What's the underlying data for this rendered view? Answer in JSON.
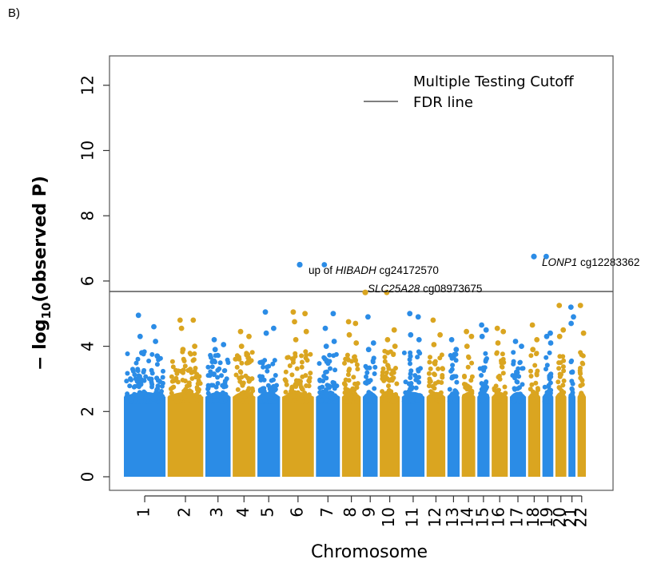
{
  "panel_label": "B)",
  "chart_data": {
    "type": "scatter",
    "subtype": "manhattan",
    "title": "",
    "xlabel": "Chromosome",
    "ylabel_prefix": "− log",
    "ylabel_sub": "10",
    "ylabel_suffix": "(observed P)",
    "ylim": [
      0,
      12.9
    ],
    "yticks": [
      0,
      2,
      4,
      6,
      8,
      10,
      12
    ],
    "grid": false,
    "colors": {
      "odd": "#2b8ce6",
      "even": "#daa520",
      "line": "#555555"
    },
    "fdr_cutoff": 5.68,
    "legend": {
      "placement": "top-right",
      "title": "Multiple Testing Cutoff",
      "entries": [
        "FDR line"
      ]
    },
    "chromosomes": [
      {
        "label": "1",
        "start": 0.0,
        "end": 0.16,
        "tops": [
          4.95,
          4.6,
          4.3,
          4.15,
          3.8,
          3.7
        ]
      },
      {
        "label": "2",
        "start": 0.168,
        "end": 0.305,
        "tops": [
          4.8,
          4.8,
          4.55,
          4.0,
          3.9
        ]
      },
      {
        "label": "3",
        "start": 0.313,
        "end": 0.41,
        "tops": [
          4.2,
          4.05,
          3.9
        ]
      },
      {
        "label": "4",
        "start": 0.418,
        "end": 0.505,
        "tops": [
          4.45,
          4.3,
          4.0
        ]
      },
      {
        "label": "5",
        "start": 0.513,
        "end": 0.6,
        "tops": [
          5.05,
          4.55,
          4.4
        ]
      },
      {
        "label": "6",
        "start": 0.608,
        "end": 0.73,
        "tops": [
          5.05,
          5.0,
          4.75,
          4.45,
          4.2
        ]
      },
      {
        "label": "7",
        "start": 0.738,
        "end": 0.83,
        "tops": [
          6.5,
          5.0,
          4.55,
          4.15,
          4.0
        ]
      },
      {
        "label": "8",
        "start": 0.838,
        "end": 0.91,
        "tops": [
          4.75,
          4.7,
          4.35,
          4.1
        ]
      },
      {
        "label": "9",
        "start": 0.918,
        "end": 0.975,
        "tops": [
          4.9,
          4.1,
          3.9
        ]
      },
      {
        "label": "10",
        "start": 0.983,
        "end": 1.06,
        "tops": [
          5.65,
          4.5,
          4.2,
          4.0
        ]
      },
      {
        "label": "11",
        "start": 1.068,
        "end": 1.155,
        "tops": [
          5.0,
          4.9,
          4.35,
          4.2
        ]
      },
      {
        "label": "12",
        "start": 1.163,
        "end": 1.235,
        "tops": [
          4.8,
          4.35,
          4.05
        ]
      },
      {
        "label": "13",
        "start": 1.243,
        "end": 1.29,
        "tops": [
          4.2,
          3.9
        ]
      },
      {
        "label": "14",
        "start": 1.298,
        "end": 1.35,
        "tops": [
          4.45,
          4.3,
          4.0
        ]
      },
      {
        "label": "15",
        "start": 1.358,
        "end": 1.405,
        "tops": [
          4.65,
          4.5,
          4.3
        ]
      },
      {
        "label": "16",
        "start": 1.413,
        "end": 1.475,
        "tops": [
          4.55,
          4.45,
          4.1
        ]
      },
      {
        "label": "17",
        "start": 1.483,
        "end": 1.545,
        "tops": [
          4.15,
          4.0
        ]
      },
      {
        "label": "18",
        "start": 1.553,
        "end": 1.6,
        "tops": [
          4.65,
          4.2,
          3.9
        ]
      },
      {
        "label": "19",
        "start": 1.608,
        "end": 1.65,
        "tops": [
          6.75,
          4.4,
          4.3,
          4.1
        ]
      },
      {
        "label": "20",
        "start": 1.658,
        "end": 1.7,
        "tops": [
          5.25,
          4.5,
          4.3
        ]
      },
      {
        "label": "21",
        "start": 1.708,
        "end": 1.735,
        "tops": [
          5.2,
          4.9,
          4.7
        ]
      },
      {
        "label": "22",
        "start": 1.743,
        "end": 1.775,
        "tops": [
          5.25,
          4.4
        ]
      }
    ],
    "annotations": [
      {
        "chr": "7",
        "value": 6.5,
        "prefix": "up of ",
        "gene": "HIBADH",
        "probe": " cg24172570"
      },
      {
        "chr": "10",
        "value": 5.65,
        "prefix": "",
        "gene": "SLC25A28",
        "probe": " cg08973675"
      },
      {
        "chr": "19",
        "value": 6.75,
        "prefix": "",
        "gene": "LONP1",
        "probe": " cg12283362"
      }
    ]
  }
}
